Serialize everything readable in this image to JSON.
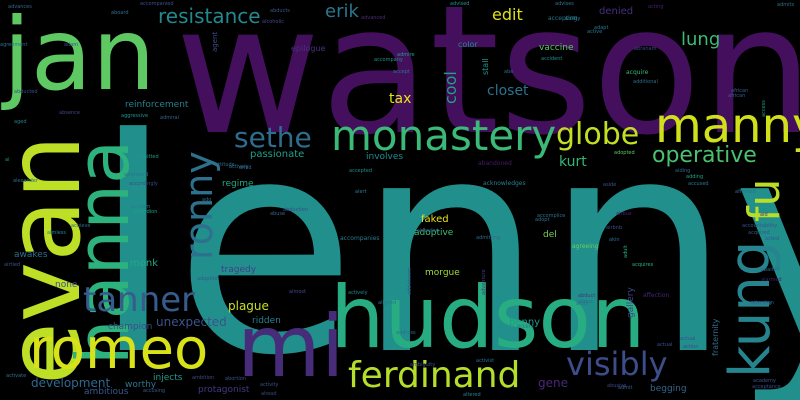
{
  "words": [
    {
      "text": "lenny",
      "color": "#21908c"
    },
    {
      "text": "watson",
      "color": "#440f5c"
    },
    {
      "text": "jan",
      "color": "#5ec962"
    },
    {
      "text": "evan",
      "color": "#bddf26"
    },
    {
      "text": "hanna",
      "color": "#2db27d"
    },
    {
      "text": "hudson",
      "color": "#27ad81"
    },
    {
      "text": "romeo",
      "color": "#d8e219"
    },
    {
      "text": "mi",
      "color": "#472c7a"
    },
    {
      "text": "monastery",
      "color": "#3aba76"
    },
    {
      "text": "manny",
      "color": "#d0e11c"
    },
    {
      "text": "globe",
      "color": "#c2df23"
    },
    {
      "text": "kung",
      "color": "#25848e"
    },
    {
      "text": "fu",
      "color": "#bade28"
    },
    {
      "text": "ferdinand",
      "color": "#b5de2b"
    },
    {
      "text": "ronny",
      "color": "#2c718e"
    },
    {
      "text": "tanner",
      "color": "#365c8d"
    },
    {
      "text": "sethe",
      "color": "#2e6d8e"
    },
    {
      "text": "visibly",
      "color": "#3d4d8a"
    },
    {
      "text": "operative",
      "color": "#4ac16d"
    },
    {
      "text": "resistance",
      "color": "#23898e"
    },
    {
      "text": "erik",
      "color": "#2a788e"
    },
    {
      "text": "lung",
      "color": "#3bbb75"
    },
    {
      "text": "edit",
      "color": "#dde318"
    },
    {
      "text": "kurt",
      "color": "#34b679"
    },
    {
      "text": "cool",
      "color": "#1fa188"
    },
    {
      "text": "closet",
      "color": "#2c728e"
    },
    {
      "text": "tax",
      "color": "#e5e419"
    },
    {
      "text": "unexpected",
      "color": "#3b528b"
    },
    {
      "text": "plague",
      "color": "#c8e020"
    },
    {
      "text": "development",
      "color": "#31688e"
    },
    {
      "text": "monk",
      "color": "#22a785"
    },
    {
      "text": "benny",
      "color": "#1f9a8a"
    },
    {
      "text": "gene",
      "color": "#482878"
    },
    {
      "text": "denied",
      "color": "#472f7d"
    },
    {
      "text": "vaccine",
      "color": "#5cc863"
    },
    {
      "text": "faked",
      "color": "#e7e419"
    },
    {
      "text": "adoptive",
      "color": "#3fbc73"
    },
    {
      "text": "morgue",
      "color": "#a0da39"
    },
    {
      "text": "del",
      "color": "#75d054"
    },
    {
      "text": "passionate",
      "color": "#1fa088"
    },
    {
      "text": "involves",
      "color": "#228c8d"
    },
    {
      "text": "reinforcement",
      "color": "#277f8e"
    },
    {
      "text": "regime",
      "color": "#22a884"
    },
    {
      "text": "ridden",
      "color": "#26828e"
    },
    {
      "text": "tragedy",
      "color": "#433e85"
    },
    {
      "text": "champion",
      "color": "#3e4a89"
    },
    {
      "text": "protagonist",
      "color": "#453781"
    },
    {
      "text": "worthy",
      "color": "#2b758e"
    },
    {
      "text": "injects",
      "color": "#1e9b8a"
    },
    {
      "text": "ambitious",
      "color": "#38598c"
    },
    {
      "text": "awakes",
      "color": "#2d708e"
    },
    {
      "text": "none",
      "color": "#3b528b"
    },
    {
      "text": "gallery",
      "color": "#3f4788"
    },
    {
      "text": "fraternity",
      "color": "#2f6c8e"
    },
    {
      "text": "begging",
      "color": "#31678e"
    },
    {
      "text": "color",
      "color": "#23888e"
    },
    {
      "text": "stall",
      "color": "#1f968b"
    },
    {
      "text": "epilogue",
      "color": "#46327e"
    },
    {
      "text": "agent",
      "color": "#3e4c8a"
    },
    {
      "text": "affection",
      "color": "#482475"
    },
    {
      "text": "accompanies",
      "color": "#2a7b8e"
    },
    {
      "text": "acknowledges",
      "color": "#26818e"
    },
    {
      "text": "agreeing",
      "color": "#6ccd5a"
    },
    {
      "text": "acquire",
      "color": "#35b779"
    },
    {
      "text": "abandoned",
      "color": "#481b6d"
    },
    {
      "text": "accepting",
      "color": "#2a768e"
    },
    {
      "text": "abducted",
      "color": "#3c4f8a"
    },
    {
      "text": "activate",
      "color": "#2c738e"
    },
    {
      "text": "adopted",
      "color": "#5ac864"
    },
    {
      "text": "acquires",
      "color": "#2ab07f"
    },
    {
      "text": "advances",
      "color": "#306a8e"
    },
    {
      "text": "actively",
      "color": "#25858e"
    },
    {
      "text": "accusing",
      "color": "#355f8d"
    },
    {
      "text": "admitted",
      "color": "#1f998a"
    },
    {
      "text": "absence",
      "color": "#404688"
    },
    {
      "text": "accordion",
      "color": "#1fa187"
    },
    {
      "text": "adding",
      "color": "#20a386"
    },
    {
      "text": "accused",
      "color": "#29798e"
    },
    {
      "text": "abraham",
      "color": "#3e4989"
    },
    {
      "text": "additional",
      "color": "#2e6e8e"
    },
    {
      "text": "action",
      "color": "#3f4889"
    },
    {
      "text": "aid",
      "color": "#46337f"
    },
    {
      "text": "ability",
      "color": "#27808e"
    },
    {
      "text": "advised",
      "color": "#1f958b"
    },
    {
      "text": "advises",
      "color": "#2b748e"
    },
    {
      "text": "aboard",
      "color": "#2e6f8e"
    },
    {
      "text": "accompanied",
      "color": "#3b518b"
    },
    {
      "text": "abducts",
      "color": "#39568c"
    },
    {
      "text": "admits",
      "color": "#2d708e"
    },
    {
      "text": "access",
      "color": "#1e9c89"
    },
    {
      "text": "acting",
      "color": "#482173"
    },
    {
      "text": "adult",
      "color": "#25ab82"
    },
    {
      "text": "actual",
      "color": "#3c4f8a"
    },
    {
      "text": "adapt",
      "color": "#2a778e"
    },
    {
      "text": "abe",
      "color": "#2f6b8e"
    },
    {
      "text": "adam",
      "color": "#3b528b"
    },
    {
      "text": "active",
      "color": "#2a788e"
    },
    {
      "text": "admire",
      "color": "#1f9f88"
    },
    {
      "text": "alcoholic",
      "color": "#3e4a89"
    },
    {
      "text": "advanced",
      "color": "#472e7c"
    },
    {
      "text": "accept",
      "color": "#2d718e"
    },
    {
      "text": "accident",
      "color": "#228d8d"
    },
    {
      "text": "accountability",
      "color": "#3a548c"
    },
    {
      "text": "african",
      "color": "#355e8d"
    },
    {
      "text": "agreement",
      "color": "#2c718e"
    },
    {
      "text": "ai",
      "color": "#1f988b"
    },
    {
      "text": "aged",
      "color": "#26828e"
    },
    {
      "text": "airbus",
      "color": "#482576"
    },
    {
      "text": "airbnb",
      "color": "#3d4e8a"
    },
    {
      "text": "akin",
      "color": "#2e6e8e"
    },
    {
      "text": "alexander",
      "color": "#2d708e"
    },
    {
      "text": "aimless",
      "color": "#24878e"
    },
    {
      "text": "attention",
      "color": "#34608d"
    },
    {
      "text": "accompany",
      "color": "#20928c"
    },
    {
      "text": "afterward",
      "color": "#2b748e"
    },
    {
      "text": "aggressive",
      "color": "#1f968b"
    },
    {
      "text": "airtied",
      "color": "#3b528b"
    },
    {
      "text": "abduction",
      "color": "#3f4889"
    },
    {
      "text": "alert",
      "color": "#2a788e"
    },
    {
      "text": "abuse",
      "color": "#31678e"
    },
    {
      "text": "address",
      "color": "#2c728e"
    },
    {
      "text": "adventure",
      "color": "#433d84"
    },
    {
      "text": "adolescent",
      "color": "#39568c"
    },
    {
      "text": "admitting",
      "color": "#2f6b8e"
    },
    {
      "text": "ambition",
      "color": "#3e4a89"
    },
    {
      "text": "aligned",
      "color": "#2a778e"
    },
    {
      "text": "aside",
      "color": "#3b518b"
    },
    {
      "text": "activist",
      "color": "#2e6d8e"
    },
    {
      "text": "abusive",
      "color": "#404688"
    },
    {
      "text": "admit",
      "color": "#34618d"
    },
    {
      "text": "ambiguity",
      "color": "#3c4f8a"
    },
    {
      "text": "alarmed",
      "color": "#481f70"
    },
    {
      "text": "altered",
      "color": "#26828e"
    },
    {
      "text": "accent",
      "color": "#2d708e"
    },
    {
      "text": "activity",
      "color": "#3a538b"
    },
    {
      "text": "ahead",
      "color": "#3f4788"
    },
    {
      "text": "actively",
      "color": "#2c738e"
    },
    {
      "text": "amid",
      "color": "#31668e"
    },
    {
      "text": "affair",
      "color": "#2a768e"
    },
    {
      "text": "achieve",
      "color": "#31688e"
    },
    {
      "text": "accepted",
      "color": "#23898e"
    },
    {
      "text": "almost",
      "color": "#3e4b8a"
    },
    {
      "text": "attitude",
      "color": "#2f6b8e"
    },
    {
      "text": "abortion",
      "color": "#3b528b"
    },
    {
      "text": "ado",
      "color": "#2d718e"
    },
    {
      "text": "accomplice",
      "color": "#2c728e"
    },
    {
      "text": "admiral",
      "color": "#31678e"
    },
    {
      "text": "academy",
      "color": "#3a548c"
    },
    {
      "text": "acclaim",
      "color": "#2a788e"
    },
    {
      "text": "abduct",
      "color": "#46337f"
    },
    {
      "text": "accordingly",
      "color": "#3e4989"
    },
    {
      "text": "adoption",
      "color": "#38588c"
    },
    {
      "text": "actual",
      "color": "#3d4e8a"
    },
    {
      "text": "abandon",
      "color": "#31688e"
    },
    {
      "text": "adopt",
      "color": "#2c728e"
    },
    {
      "text": "aliens",
      "color": "#2e6e8e"
    },
    {
      "text": "acceptance",
      "color": "#3f4889"
    },
    {
      "text": "african",
      "color": "#34608d"
    },
    {
      "text": "accuse",
      "color": "#2b758e"
    },
    {
      "text": "affected",
      "color": "#2d708e"
    },
    {
      "text": "acquired",
      "color": "#3b528b"
    },
    {
      "text": "acted",
      "color": "#3a548c"
    },
    {
      "text": "aiding",
      "color": "#31668e"
    },
    {
      "text": "awaited",
      "color": "#2e6d8e"
    }
  ]
}
